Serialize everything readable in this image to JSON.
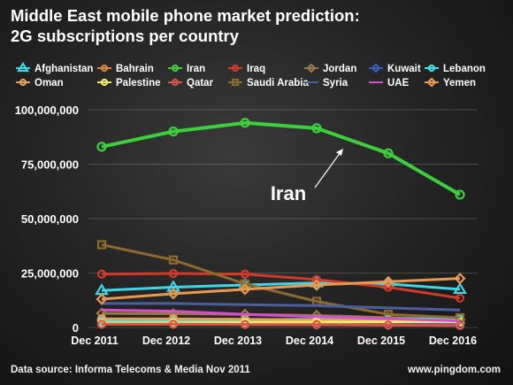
{
  "header": {
    "title_line1": "Middle East mobile phone market prediction:",
    "title_line2": "2G subscriptions per country"
  },
  "footer": {
    "source": "Data source: Informa Telecoms & Media Nov 2011",
    "site": "www.pingdom.com"
  },
  "chart_data": {
    "type": "line",
    "title": "Middle East mobile phone market prediction: 2G subscriptions per country",
    "x": [
      "Dec 2011",
      "Dec 2012",
      "Dec 2013",
      "Dec 2014",
      "Dec 2015",
      "Dec 2016"
    ],
    "ylim": [
      0,
      100000000
    ],
    "yticks": [
      "0",
      "25,000,000",
      "50,000,000",
      "75,000,000",
      "100,000,000"
    ],
    "yticks_values": [
      0,
      25000000,
      50000000,
      75000000,
      100000000
    ],
    "grid": true,
    "legend_position": "top",
    "annotation": {
      "text": "Iran",
      "target": "Iran series near Dec 2014–Dec 2015"
    },
    "series": [
      {
        "name": "Afghanistan",
        "color": "#3fd6ea",
        "marker": "star",
        "values": [
          17000000,
          18500000,
          19500000,
          20500000,
          20000000,
          17500000
        ]
      },
      {
        "name": "Bahrain",
        "color": "#d88b33",
        "marker": "circle",
        "values": [
          1500000,
          1500000,
          1400000,
          1300000,
          1100000,
          1000000
        ]
      },
      {
        "name": "Iran",
        "color": "#3cd13c",
        "marker": "circle",
        "values": [
          83000000,
          90000000,
          94000000,
          91500000,
          80000000,
          61000000
        ]
      },
      {
        "name": "Iraq",
        "color": "#d23a2a",
        "marker": "circle",
        "values": [
          24500000,
          24800000,
          24500000,
          22000000,
          18500000,
          13500000
        ]
      },
      {
        "name": "Jordan",
        "color": "#9a7a44",
        "marker": "diamond",
        "values": [
          6500000,
          6300000,
          6000000,
          5500000,
          4500000,
          3500000
        ]
      },
      {
        "name": "Kuwait",
        "color": "#3c5bbd",
        "marker": "diamond",
        "values": [
          3500000,
          3400000,
          3200000,
          3000000,
          2500000,
          2000000
        ]
      },
      {
        "name": "Lebanon",
        "color": "#3ee0ea",
        "marker": "circle",
        "values": [
          3000000,
          3300000,
          3600000,
          3800000,
          3900000,
          4000000
        ]
      },
      {
        "name": "Oman",
        "color": "#e3a05a",
        "marker": "circle",
        "values": [
          4000000,
          4000000,
          3800000,
          3500000,
          3000000,
          2500000
        ]
      },
      {
        "name": "Palestine",
        "color": "#ecec66",
        "marker": "circle",
        "values": [
          2000000,
          2200000,
          2400000,
          2500000,
          2600000,
          2700000
        ]
      },
      {
        "name": "Qatar",
        "color": "#d8544a",
        "marker": "circle",
        "values": [
          1500000,
          1500000,
          1400000,
          1300000,
          1100000,
          900000
        ]
      },
      {
        "name": "Saudi Arabia",
        "color": "#8f6a2e",
        "marker": "square",
        "values": [
          38000000,
          31000000,
          20000000,
          12000000,
          6000000,
          4500000
        ]
      },
      {
        "name": "Syria",
        "color": "#4a5fa0",
        "marker": "line",
        "values": [
          11000000,
          11000000,
          10500000,
          10000000,
          9000000,
          8000000
        ]
      },
      {
        "name": "UAE",
        "color": "#d64fd0",
        "marker": "line",
        "values": [
          8000000,
          7500000,
          6000000,
          5000000,
          4000000,
          3000000
        ]
      },
      {
        "name": "Yemen",
        "color": "#e69a52",
        "marker": "diamond",
        "values": [
          13000000,
          15500000,
          17500000,
          19500000,
          21000000,
          22500000
        ]
      }
    ]
  }
}
